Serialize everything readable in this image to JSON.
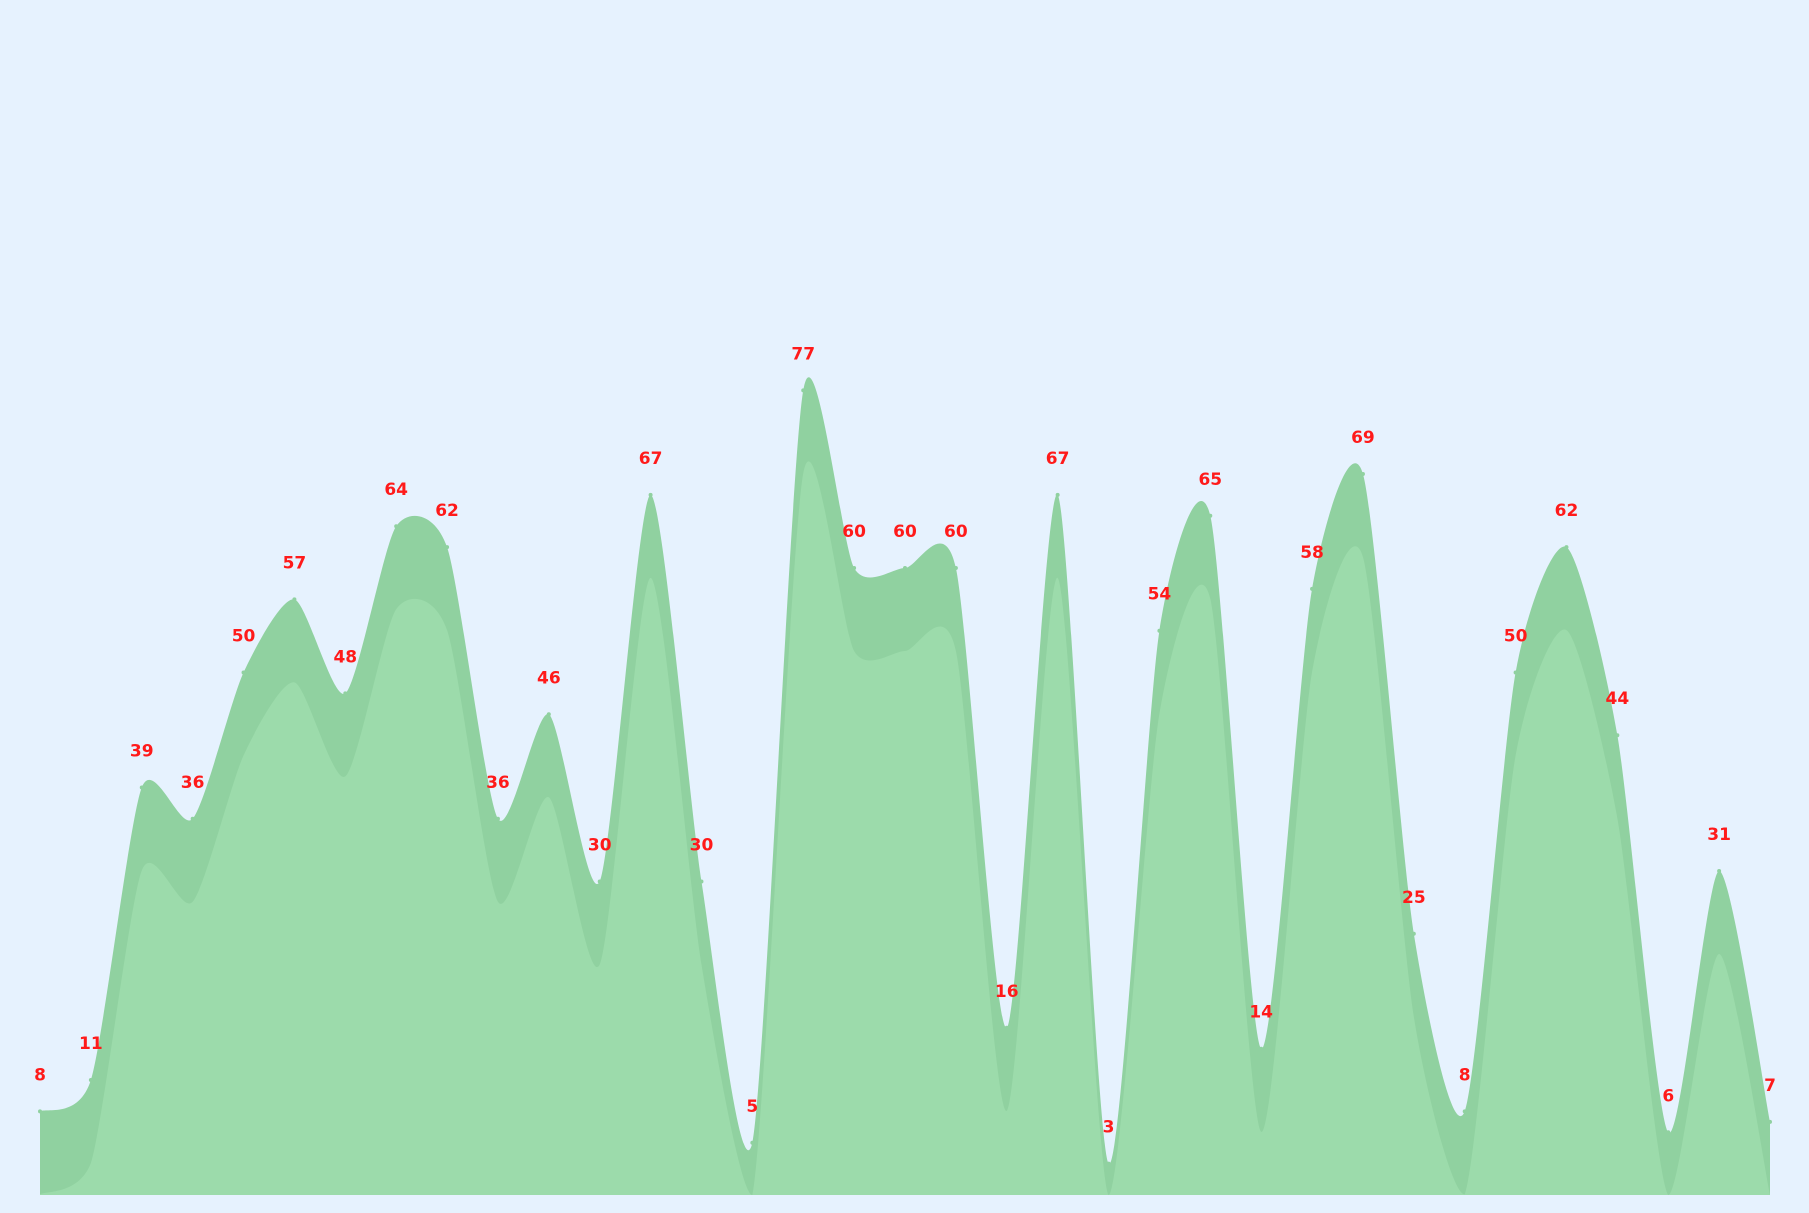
{
  "colors": {
    "background": "#e6f2fe",
    "area_upper": "#90d1a0",
    "area_lower": "#9cdbab",
    "label": "#ff1a1a"
  },
  "chart_data": {
    "type": "area",
    "title": "",
    "xlabel": "",
    "ylabel": "",
    "grid": false,
    "legend": "none",
    "ylim": [
      0,
      105
    ],
    "x": [
      0,
      1,
      2,
      3,
      4,
      5,
      6,
      7,
      8,
      9,
      10,
      11,
      12,
      13,
      14,
      15,
      16,
      17,
      18,
      19,
      20,
      21,
      22,
      23,
      24,
      25,
      26,
      27,
      28,
      29,
      30,
      31,
      32,
      33,
      34
    ],
    "series": [
      {
        "values": [
          8,
          11,
          39,
          36,
          50,
          57,
          48,
          64,
          62,
          36,
          46,
          30,
          67,
          30,
          5,
          77,
          60,
          60,
          60,
          16,
          67,
          3,
          54,
          65,
          14,
          58,
          69,
          25,
          8,
          50,
          62,
          44,
          6,
          31,
          7
        ]
      }
    ],
    "labels": [
      "8",
      "11",
      "39",
      "36",
      "50",
      "57",
      "48",
      "64",
      "62",
      "36",
      "46",
      "30",
      "67",
      "30",
      "5",
      "77",
      "60",
      "60",
      "60",
      "16",
      "67",
      "3",
      "54",
      "65",
      "14",
      "58",
      "69",
      "25",
      "8",
      "50",
      "62",
      "44",
      "6",
      "31",
      "7"
    ]
  }
}
